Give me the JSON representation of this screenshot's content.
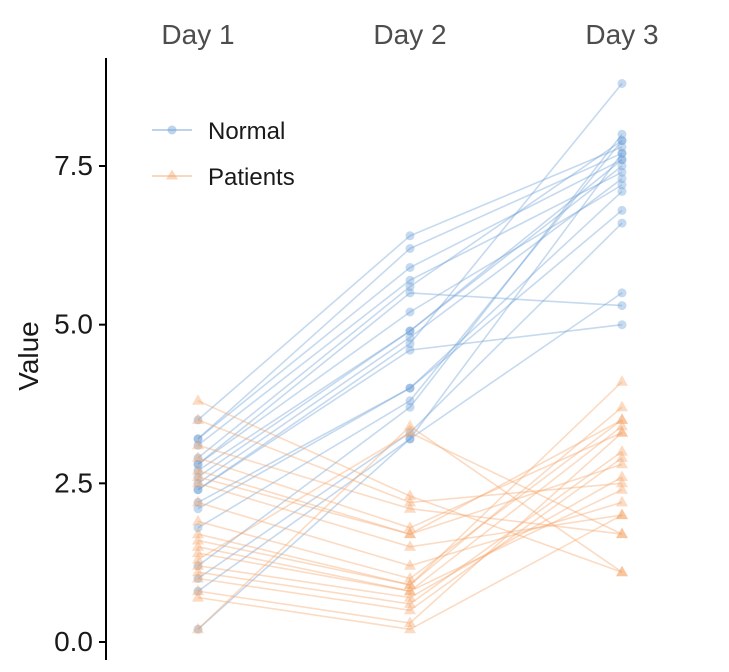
{
  "chart_data": {
    "type": "line",
    "categories": [
      "Day 1",
      "Day 2",
      "Day 3"
    ],
    "ylabel": "Value",
    "ylim": [
      0.0,
      9.0
    ],
    "y_ticks": [
      0.0,
      2.5,
      5.0,
      7.5
    ],
    "y_tick_labels": [
      "0.0",
      "2.5",
      "5.0",
      "7.5"
    ],
    "grid": false,
    "legend_position": "top-left",
    "series": [
      {
        "name": "Normal",
        "color": "#6f9fd8",
        "marker": "circle",
        "subjects": [
          [
            3.5,
            6.4,
            7.8
          ],
          [
            3.2,
            6.2,
            7.7
          ],
          [
            3.2,
            5.9,
            7.6
          ],
          [
            3.1,
            5.7,
            7.4
          ],
          [
            2.9,
            5.6,
            7.9
          ],
          [
            2.8,
            5.5,
            5.3
          ],
          [
            2.8,
            5.2,
            7.2
          ],
          [
            2.7,
            4.9,
            7.6
          ],
          [
            2.6,
            4.9,
            7.5
          ],
          [
            2.5,
            4.8,
            7.3
          ],
          [
            2.4,
            4.7,
            8.8
          ],
          [
            2.4,
            4.6,
            5.0
          ],
          [
            2.2,
            4.0,
            7.1
          ],
          [
            2.1,
            4.0,
            6.8
          ],
          [
            1.8,
            3.8,
            7.9
          ],
          [
            1.2,
            3.7,
            8.0
          ],
          [
            1.0,
            3.3,
            6.6
          ],
          [
            0.8,
            3.2,
            5.5
          ],
          [
            0.2,
            3.2,
            7.7
          ]
        ]
      },
      {
        "name": "Patients",
        "color": "#f4a46a",
        "marker": "triangle",
        "subjects": [
          [
            3.8,
            2.3,
            1.1
          ],
          [
            3.5,
            2.2,
            2.5
          ],
          [
            3.1,
            2.1,
            1.7
          ],
          [
            2.9,
            1.8,
            3.3
          ],
          [
            2.7,
            1.7,
            2.8
          ],
          [
            2.6,
            1.7,
            3.5
          ],
          [
            2.5,
            1.5,
            2.0
          ],
          [
            2.2,
            1.2,
            2.2
          ],
          [
            1.9,
            1.0,
            3.5
          ],
          [
            1.7,
            0.9,
            4.1
          ],
          [
            1.6,
            0.9,
            3.7
          ],
          [
            1.5,
            0.8,
            3.4
          ],
          [
            1.4,
            0.8,
            2.4
          ],
          [
            1.2,
            0.7,
            2.6
          ],
          [
            1.1,
            0.6,
            3.0
          ],
          [
            1.0,
            0.5,
            2.9
          ],
          [
            0.8,
            0.3,
            3.3
          ],
          [
            0.7,
            0.2,
            2.0
          ],
          [
            0.2,
            3.4,
            1.1
          ],
          [
            1.3,
            3.3,
            1.7
          ]
        ]
      }
    ]
  }
}
